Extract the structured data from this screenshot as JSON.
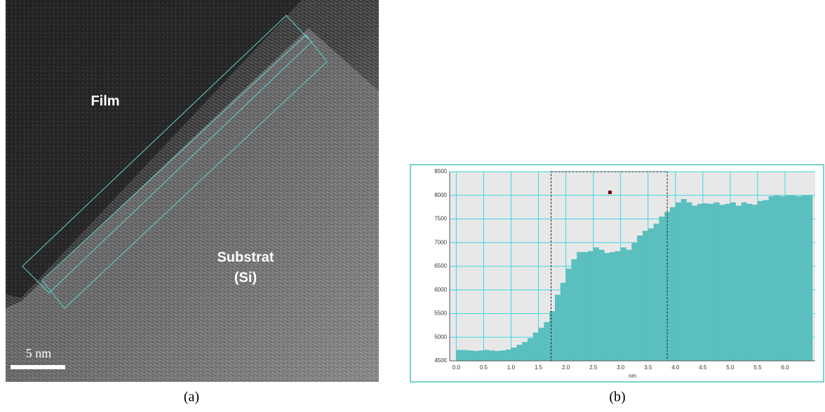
{
  "panel_a": {
    "labels": [
      "Film",
      "Substrat",
      "(Si)"
    ],
    "scale_bar": "5 nm"
  },
  "captions": [
    "(a)",
    "(b)"
  ],
  "chart_data": {
    "type": "histogram",
    "x_label": "nm",
    "color": "#5bbfbf",
    "grid": true,
    "bins": [
      0,
      0.1,
      0.2,
      0.3,
      0.4,
      0.5,
      0.6,
      0.7,
      0.8,
      0.9,
      1,
      1.1,
      1.2,
      1.3,
      1.4,
      1.5,
      1.6,
      1.7,
      1.8,
      1.9,
      2,
      2.1,
      2.2,
      2.3,
      2.4,
      2.5,
      2.6,
      2.7,
      2.8,
      2.9,
      3,
      3.1,
      3.2,
      3.3,
      3.4,
      3.5,
      3.6,
      3.7,
      3.8,
      3.9,
      4,
      4.1,
      4.2,
      4.3,
      4.4,
      4.5,
      4.6,
      4.7,
      4.8,
      4.9,
      5,
      5.1,
      5.2,
      5.3,
      5.4,
      5.5,
      5.6,
      5.7,
      5.8,
      5.9,
      6,
      6.1,
      6.2,
      6.3,
      6.4,
      6.5
    ],
    "values": [
      4730,
      4730,
      4720,
      4710,
      4720,
      4730,
      4720,
      4710,
      4720,
      4740,
      4780,
      4840,
      4900,
      4980,
      5100,
      5200,
      5320,
      5550,
      5900,
      6150,
      6450,
      6650,
      6800,
      6800,
      6820,
      6900,
      6850,
      6780,
      6800,
      6820,
      6900,
      6850,
      7000,
      7150,
      7250,
      7300,
      7400,
      7550,
      7650,
      7750,
      7850,
      7920,
      7850,
      7780,
      7820,
      7830,
      7820,
      7850,
      7800,
      7820,
      7850,
      7780,
      7850,
      7820,
      7800,
      7880,
      7900,
      7980,
      8000,
      7980,
      8000,
      8000,
      7980,
      8000,
      8000
    ],
    "selection": [
      1.73,
      3.85
    ],
    "xlim": [
      -0.12,
      6.55
    ],
    "ylim": [
      4500,
      8500
    ],
    "xticks": [
      {
        "value": 0,
        "label": "0.0"
      },
      0.5,
      {
        "value": 1,
        "label": "1.0"
      },
      1.5,
      {
        "value": 2,
        "label": "2.0"
      },
      2.5,
      {
        "value": 3,
        "label": "3.0"
      },
      3.5,
      {
        "value": 4,
        "label": "4.0"
      },
      4.5,
      {
        "value": 5,
        "label": "5.0"
      },
      5.5,
      {
        "value": 6,
        "label": "6.0"
      }
    ],
    "yticks": [
      4500,
      5000,
      5500,
      6000,
      6500,
      7000,
      7500,
      8000,
      8500
    ]
  }
}
